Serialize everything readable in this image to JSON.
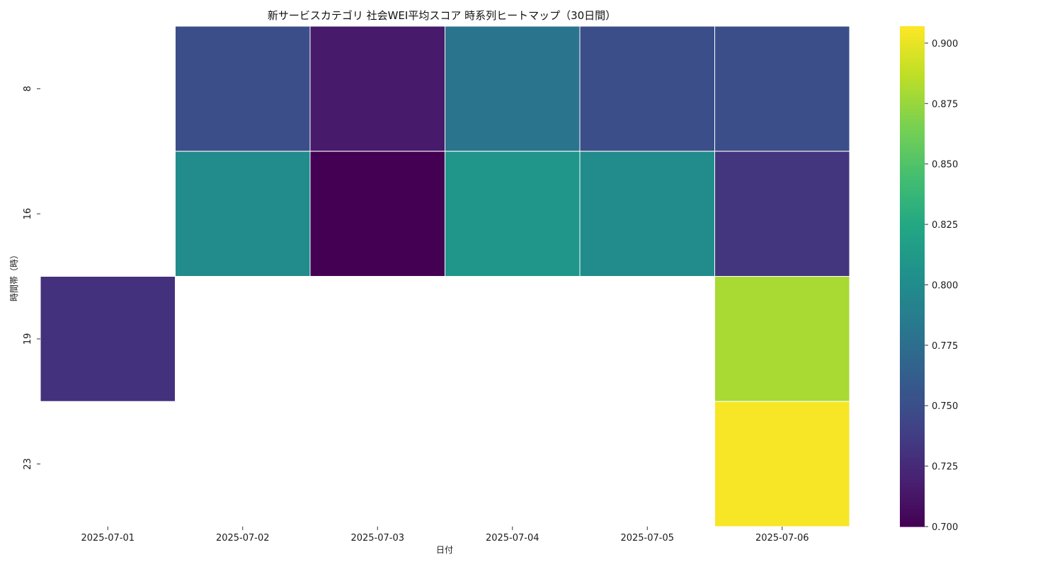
{
  "chart_data": {
    "type": "heatmap",
    "title": "新サービスカテゴリ 社会WEI平均スコア 時系列ヒートマップ（30日間）",
    "xlabel": "日付",
    "ylabel": "時間帯（時）",
    "x_categories": [
      "2025-07-01",
      "2025-07-02",
      "2025-07-03",
      "2025-07-04",
      "2025-07-05",
      "2025-07-06"
    ],
    "y_categories": [
      "8",
      "16",
      "19",
      "23"
    ],
    "values": [
      [
        null,
        0.75,
        0.715,
        0.78,
        0.75,
        0.75
      ],
      [
        null,
        0.8,
        0.7,
        0.808,
        0.8,
        0.733
      ],
      [
        0.73,
        null,
        null,
        null,
        null,
        0.88
      ],
      [
        null,
        null,
        null,
        null,
        null,
        0.905
      ]
    ],
    "colormap": "viridis",
    "vmin": 0.7,
    "vmax": 0.907,
    "colorbar_ticks": [
      "0.700",
      "0.725",
      "0.750",
      "0.775",
      "0.800",
      "0.825",
      "0.850",
      "0.875",
      "0.900"
    ],
    "grid": false,
    "legend": "colorbar-right"
  }
}
